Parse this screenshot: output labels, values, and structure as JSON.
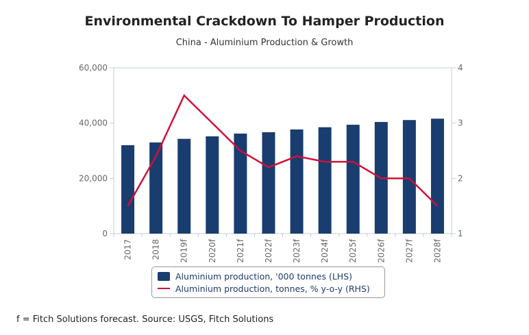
{
  "chart_data": {
    "type": "bar+line",
    "title": "Environmental Crackdown To Hamper Production",
    "subtitle": "China - Aluminium Production & Growth",
    "categories": [
      "2017",
      "2018",
      "2019f",
      "2020f",
      "2021f",
      "2022f",
      "2023f",
      "2024f",
      "2025f",
      "2026f",
      "2027f",
      "2028f"
    ],
    "series": [
      {
        "name": "Aluminium production, '000 tonnes (LHS)",
        "type": "bar",
        "axis": "left",
        "color": "#1a3d6f",
        "values": [
          32000,
          33000,
          34300,
          35200,
          36200,
          36700,
          37700,
          38500,
          39400,
          40400,
          41100,
          41600
        ]
      },
      {
        "name": "Aluminium production, tonnes, % y-o-y (RHS)",
        "type": "line",
        "axis": "right",
        "color": "#d0103a",
        "values": [
          1.5,
          2.4,
          3.5,
          3.0,
          2.5,
          2.2,
          2.4,
          2.3,
          2.3,
          2.0,
          2.0,
          1.5
        ]
      }
    ],
    "left_axis": {
      "min": 0,
      "max": 60000,
      "ticks": [
        0,
        20000,
        40000,
        60000
      ],
      "tick_labels": [
        "0",
        "20,000",
        "40,000",
        "60,000"
      ]
    },
    "right_axis": {
      "min": 1,
      "max": 4,
      "ticks": [
        1,
        2,
        3,
        4
      ],
      "tick_labels": [
        "1",
        "2",
        "3",
        "4"
      ]
    },
    "xlabel": "",
    "ylabel": "",
    "grid": false,
    "legend_position": "bottom"
  },
  "footnote": "f = Fitch Solutions forecast. Source: USGS, Fitch Solutions"
}
